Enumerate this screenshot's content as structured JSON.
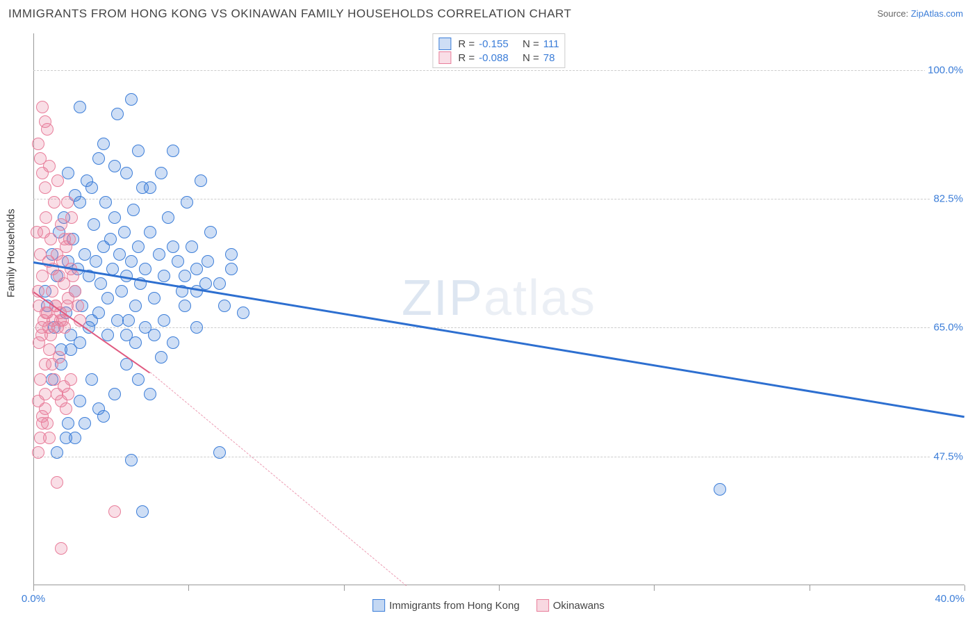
{
  "title": "IMMIGRANTS FROM HONG KONG VS OKINAWAN FAMILY HOUSEHOLDS CORRELATION CHART",
  "source_label": "Source: ",
  "source_name": "ZipAtlas.com",
  "ylabel": "Family Households",
  "watermark_a": "ZIP",
  "watermark_b": "atlas",
  "chart": {
    "type": "scatter",
    "xlim": [
      0,
      40
    ],
    "ylim": [
      30,
      105
    ],
    "yticks": [
      47.5,
      65.0,
      82.5,
      100.0
    ],
    "ytick_labels": [
      "47.5%",
      "65.0%",
      "82.5%",
      "100.0%"
    ],
    "xticks": [
      0,
      6.67,
      13.33,
      20,
      26.67,
      33.33,
      40
    ],
    "xtick_labels_shown": {
      "0": "0.0%",
      "40": "40.0%"
    },
    "grid_color": "#cccccc",
    "background_color": "#ffffff",
    "marker_radius": 9,
    "marker_stroke_width": 1.5,
    "marker_fill_opacity": 0.25
  },
  "series": [
    {
      "name": "Immigrants from Hong Kong",
      "color_stroke": "#3b7dd8",
      "color_fill": "rgba(59,125,216,0.25)",
      "R": "-0.155",
      "N": "111",
      "regression": {
        "x1": 0,
        "y1": 74,
        "x2": 40,
        "y2": 53,
        "dash": false,
        "width": 3,
        "color": "#2d6fd0"
      },
      "points": [
        [
          0.5,
          70
        ],
        [
          0.6,
          68
        ],
        [
          0.8,
          75
        ],
        [
          0.9,
          65
        ],
        [
          1.0,
          72
        ],
        [
          1.1,
          78
        ],
        [
          1.2,
          60
        ],
        [
          1.3,
          80
        ],
        [
          1.4,
          67
        ],
        [
          1.5,
          74
        ],
        [
          1.6,
          62
        ],
        [
          1.7,
          77
        ],
        [
          1.8,
          70
        ],
        [
          1.9,
          73
        ],
        [
          2.0,
          95
        ],
        [
          2.1,
          68
        ],
        [
          2.2,
          75
        ],
        [
          2.3,
          85
        ],
        [
          2.4,
          72
        ],
        [
          2.5,
          66
        ],
        [
          2.6,
          79
        ],
        [
          2.7,
          74
        ],
        [
          2.8,
          88
        ],
        [
          2.9,
          71
        ],
        [
          3.0,
          76
        ],
        [
          3.1,
          82
        ],
        [
          3.2,
          69
        ],
        [
          3.3,
          77
        ],
        [
          3.4,
          73
        ],
        [
          3.5,
          80
        ],
        [
          3.6,
          94
        ],
        [
          3.7,
          75
        ],
        [
          3.8,
          70
        ],
        [
          3.9,
          78
        ],
        [
          4.0,
          72
        ],
        [
          4.1,
          66
        ],
        [
          4.2,
          74
        ],
        [
          4.3,
          81
        ],
        [
          4.4,
          68
        ],
        [
          4.5,
          76
        ],
        [
          4.6,
          71
        ],
        [
          4.7,
          84
        ],
        [
          4.8,
          73
        ],
        [
          5.0,
          78
        ],
        [
          5.2,
          69
        ],
        [
          5.4,
          75
        ],
        [
          5.6,
          72
        ],
        [
          5.8,
          80
        ],
        [
          6.0,
          89
        ],
        [
          6.2,
          74
        ],
        [
          6.4,
          70
        ],
        [
          6.6,
          82
        ],
        [
          6.8,
          76
        ],
        [
          7.0,
          73
        ],
        [
          7.2,
          85
        ],
        [
          7.4,
          71
        ],
        [
          7.6,
          78
        ],
        [
          8.0,
          48
        ],
        [
          8.2,
          68
        ],
        [
          8.5,
          75
        ],
        [
          2.0,
          55
        ],
        [
          2.5,
          58
        ],
        [
          3.0,
          53
        ],
        [
          3.5,
          56
        ],
        [
          1.5,
          52
        ],
        [
          1.8,
          50
        ],
        [
          4.0,
          60
        ],
        [
          4.5,
          58
        ],
        [
          5.0,
          56
        ],
        [
          5.5,
          61
        ],
        [
          1.0,
          48
        ],
        [
          1.4,
          50
        ],
        [
          2.2,
          52
        ],
        [
          2.8,
          54
        ],
        [
          0.8,
          58
        ],
        [
          1.2,
          62
        ],
        [
          1.6,
          64
        ],
        [
          2.0,
          63
        ],
        [
          2.4,
          65
        ],
        [
          2.8,
          67
        ],
        [
          3.2,
          64
        ],
        [
          3.6,
          66
        ],
        [
          4.0,
          64
        ],
        [
          4.4,
          63
        ],
        [
          4.8,
          65
        ],
        [
          5.2,
          64
        ],
        [
          5.6,
          66
        ],
        [
          6.0,
          63
        ],
        [
          6.5,
          68
        ],
        [
          7.0,
          65
        ],
        [
          3.0,
          90
        ],
        [
          3.5,
          87
        ],
        [
          4.0,
          86
        ],
        [
          4.5,
          89
        ],
        [
          5.0,
          84
        ],
        [
          5.5,
          86
        ],
        [
          2.0,
          82
        ],
        [
          2.5,
          84
        ],
        [
          1.5,
          86
        ],
        [
          1.8,
          83
        ],
        [
          6.0,
          76
        ],
        [
          6.5,
          72
        ],
        [
          7.0,
          70
        ],
        [
          7.5,
          74
        ],
        [
          8.0,
          71
        ],
        [
          8.5,
          73
        ],
        [
          9.0,
          67
        ],
        [
          4.2,
          47
        ],
        [
          4.7,
          40
        ],
        [
          29.5,
          43
        ],
        [
          4.2,
          96
        ]
      ]
    },
    {
      "name": "Okinawans",
      "color_stroke": "#e87d9a",
      "color_fill": "rgba(232,125,154,0.25)",
      "R": "-0.088",
      "N": "78",
      "regression_solid": {
        "x1": 0,
        "y1": 70,
        "x2": 5,
        "y2": 59,
        "dash": false,
        "width": 2.5,
        "color": "#e05a80"
      },
      "regression_dashed": {
        "x1": 5,
        "y1": 59,
        "x2": 16,
        "y2": 30,
        "dash": true,
        "width": 1.5,
        "color": "rgba(224,90,128,0.6)"
      },
      "points": [
        [
          0.2,
          70
        ],
        [
          0.25,
          68
        ],
        [
          0.3,
          75
        ],
        [
          0.35,
          65
        ],
        [
          0.4,
          72
        ],
        [
          0.45,
          78
        ],
        [
          0.5,
          60
        ],
        [
          0.55,
          80
        ],
        [
          0.6,
          67
        ],
        [
          0.65,
          74
        ],
        [
          0.7,
          62
        ],
        [
          0.75,
          77
        ],
        [
          0.8,
          70
        ],
        [
          0.85,
          73
        ],
        [
          0.9,
          82
        ],
        [
          0.95,
          68
        ],
        [
          1.0,
          75
        ],
        [
          1.05,
          85
        ],
        [
          1.1,
          72
        ],
        [
          1.15,
          66
        ],
        [
          1.2,
          79
        ],
        [
          1.25,
          74
        ],
        [
          1.3,
          71
        ],
        [
          1.35,
          77
        ],
        [
          1.4,
          76
        ],
        [
          1.45,
          82
        ],
        [
          1.5,
          69
        ],
        [
          1.55,
          77
        ],
        [
          1.6,
          73
        ],
        [
          1.65,
          80
        ],
        [
          0.2,
          55
        ],
        [
          0.3,
          58
        ],
        [
          0.4,
          53
        ],
        [
          0.5,
          56
        ],
        [
          0.6,
          52
        ],
        [
          0.7,
          50
        ],
        [
          0.8,
          60
        ],
        [
          0.9,
          58
        ],
        [
          1.0,
          56
        ],
        [
          1.1,
          61
        ],
        [
          0.2,
          48
        ],
        [
          0.3,
          50
        ],
        [
          0.4,
          52
        ],
        [
          0.5,
          54
        ],
        [
          0.2,
          90
        ],
        [
          0.3,
          88
        ],
        [
          0.4,
          86
        ],
        [
          0.5,
          84
        ],
        [
          0.6,
          92
        ],
        [
          0.7,
          87
        ],
        [
          0.25,
          63
        ],
        [
          0.35,
          64
        ],
        [
          0.45,
          66
        ],
        [
          0.55,
          67
        ],
        [
          0.65,
          65
        ],
        [
          0.75,
          64
        ],
        [
          0.85,
          66
        ],
        [
          0.95,
          68
        ],
        [
          1.05,
          65
        ],
        [
          1.15,
          67
        ],
        [
          1.25,
          66
        ],
        [
          1.35,
          65
        ],
        [
          1.45,
          68
        ],
        [
          1.2,
          55
        ],
        [
          1.3,
          57
        ],
        [
          1.4,
          54
        ],
        [
          1.5,
          56
        ],
        [
          1.6,
          58
        ],
        [
          0.4,
          95
        ],
        [
          0.5,
          93
        ],
        [
          1.0,
          44
        ],
        [
          1.2,
          35
        ],
        [
          1.7,
          72
        ],
        [
          1.8,
          70
        ],
        [
          1.9,
          68
        ],
        [
          2.0,
          66
        ],
        [
          3.5,
          40
        ],
        [
          0.15,
          78
        ]
      ]
    }
  ],
  "bottom_legend": [
    {
      "label": "Immigrants from Hong Kong",
      "stroke": "#3b7dd8",
      "fill": "rgba(59,125,216,0.3)"
    },
    {
      "label": "Okinawans",
      "stroke": "#e87d9a",
      "fill": "rgba(232,125,154,0.3)"
    }
  ]
}
